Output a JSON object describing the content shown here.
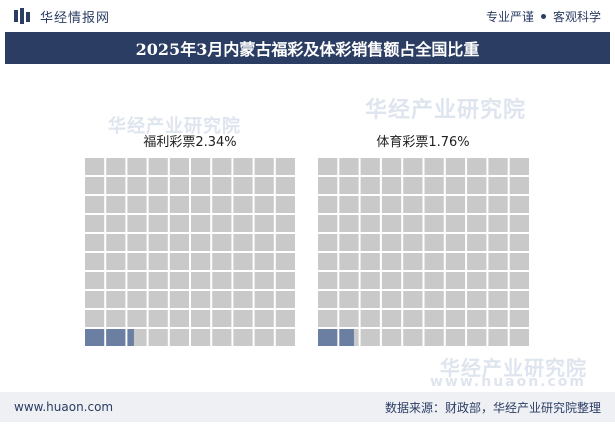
{
  "header": {
    "brand": "华经情报网",
    "slogan_left": "专业严谨",
    "slogan_right": "客观科学"
  },
  "title": "2025年3月内蒙古福彩及体彩销售额占全国比重",
  "watermark": {
    "text": "华经产业研究院",
    "url": "www.huaon.com"
  },
  "footer": {
    "url": "www.huaon.com",
    "source": "数据来源：财政部，华经产业研究院整理"
  },
  "colors": {
    "header_navy": "#2b3d63",
    "filled_cell": "#6b7fa3",
    "empty_cell": "#c9c9c9"
  },
  "chart_data": [
    {
      "type": "waffle",
      "label": "福利彩票2.34%",
      "value": 2.34,
      "total": 100,
      "grid": [
        10,
        10
      ]
    },
    {
      "type": "waffle",
      "label": "体育彩票1.76%",
      "value": 1.76,
      "total": 100,
      "grid": [
        10,
        10
      ]
    }
  ]
}
